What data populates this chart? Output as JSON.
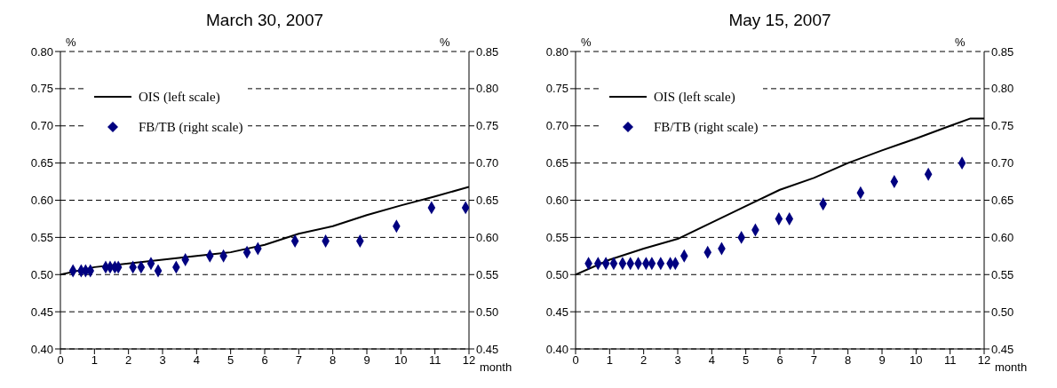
{
  "chart_data": [
    {
      "type": "line",
      "title": "March 30, 2007",
      "xlabel": "month",
      "ylabel": "%",
      "y2label": "%",
      "xlim": [
        0,
        12
      ],
      "xticks": [
        0,
        1,
        2,
        3,
        4,
        5,
        6,
        7,
        8,
        9,
        10,
        11,
        12
      ],
      "ylim": [
        0.4,
        0.8
      ],
      "yticks": [
        {
          "value": 0.4,
          "label": "0.40"
        },
        {
          "value": 0.45,
          "label": "0.45"
        },
        {
          "value": 0.5,
          "label": "0.50"
        },
        {
          "value": 0.55,
          "label": "0.55"
        },
        {
          "value": 0.6,
          "label": "0.60"
        },
        {
          "value": 0.65,
          "label": "0.65"
        },
        {
          "value": 0.7,
          "label": "0.70"
        },
        {
          "value": 0.75,
          "label": "0.75"
        },
        {
          "value": 0.8,
          "label": "0.80"
        }
      ],
      "y2lim": [
        0.45,
        0.85
      ],
      "y2ticks": [
        {
          "value": 0.45,
          "label": "0.45"
        },
        {
          "value": 0.5,
          "label": "0.50"
        },
        {
          "value": 0.55,
          "label": "0.55"
        },
        {
          "value": 0.6,
          "label": "0.60"
        },
        {
          "value": 0.65,
          "label": "0.65"
        },
        {
          "value": 0.7,
          "label": "0.70"
        },
        {
          "value": 0.75,
          "label": "0.75"
        },
        {
          "value": 0.8,
          "label": "0.80"
        },
        {
          "value": 0.85,
          "label": "0.85"
        }
      ],
      "grid": "y",
      "legend": "top left",
      "series": [
        {
          "name": "OIS (left scale)",
          "color": "#000000",
          "marker": "none",
          "line_style": "solid",
          "x": [
            0,
            1,
            2,
            3,
            4,
            5,
            6,
            7,
            8,
            9,
            10,
            11,
            12
          ],
          "values": [
            0.5,
            0.51,
            0.515,
            0.52,
            0.525,
            0.53,
            0.54,
            0.555,
            0.565,
            0.58,
            0.593,
            0.605,
            0.618
          ]
        },
        {
          "name": "FB/TB (right scale)",
          "type": "scatter",
          "axis": "y2",
          "color": "#000080",
          "marker": "diamond",
          "x": [
            0.37,
            0.61,
            0.74,
            0.88,
            1.33,
            1.46,
            1.6,
            1.7,
            2.13,
            2.37,
            2.66,
            2.87,
            3.4,
            3.67,
            4.39,
            4.79,
            5.48,
            5.8,
            6.89,
            7.79,
            8.8,
            9.87,
            10.9,
            11.9
          ],
          "values": [
            0.555,
            0.555,
            0.555,
            0.555,
            0.56,
            0.56,
            0.56,
            0.56,
            0.56,
            0.56,
            0.565,
            0.555,
            0.56,
            0.57,
            0.575,
            0.575,
            0.58,
            0.585,
            0.595,
            0.595,
            0.595,
            0.615,
            0.64,
            0.64
          ]
        }
      ]
    },
    {
      "type": "line",
      "title": "May 15, 2007",
      "xlabel": "month",
      "ylabel": "%",
      "y2label": "%",
      "xlim": [
        0,
        12
      ],
      "xticks": [
        0,
        1,
        2,
        3,
        4,
        5,
        6,
        7,
        8,
        9,
        10,
        11,
        12
      ],
      "ylim": [
        0.4,
        0.8
      ],
      "yticks": [
        {
          "value": 0.4,
          "label": "0.40"
        },
        {
          "value": 0.45,
          "label": "0.45"
        },
        {
          "value": 0.5,
          "label": "0.50"
        },
        {
          "value": 0.55,
          "label": "0.55"
        },
        {
          "value": 0.6,
          "label": "0.60"
        },
        {
          "value": 0.65,
          "label": "0.65"
        },
        {
          "value": 0.7,
          "label": "0.70"
        },
        {
          "value": 0.75,
          "label": "0.75"
        },
        {
          "value": 0.8,
          "label": "0.80"
        }
      ],
      "y2lim": [
        0.45,
        0.85
      ],
      "y2ticks": [
        {
          "value": 0.45,
          "label": "0.45"
        },
        {
          "value": 0.5,
          "label": "0.50"
        },
        {
          "value": 0.55,
          "label": "0.55"
        },
        {
          "value": 0.6,
          "label": "0.60"
        },
        {
          "value": 0.65,
          "label": "0.65"
        },
        {
          "value": 0.7,
          "label": "0.70"
        },
        {
          "value": 0.75,
          "label": "0.75"
        },
        {
          "value": 0.8,
          "label": "0.80"
        },
        {
          "value": 0.85,
          "label": "0.85"
        }
      ],
      "grid": "y",
      "legend": "top left",
      "series": [
        {
          "name": "OIS (left scale)",
          "color": "#000000",
          "marker": "none",
          "line_style": "solid",
          "x": [
            0,
            1,
            2,
            3,
            4,
            5,
            6,
            7,
            8,
            9,
            10,
            11,
            11.6,
            12
          ],
          "values": [
            0.5,
            0.52,
            0.535,
            0.548,
            0.57,
            0.592,
            0.614,
            0.63,
            0.65,
            0.667,
            0.683,
            0.7,
            0.71,
            0.71
          ]
        },
        {
          "name": "FB/TB (right scale)",
          "type": "scatter",
          "axis": "y2",
          "color": "#000080",
          "marker": "diamond",
          "x": [
            0.38,
            0.66,
            0.89,
            1.12,
            1.38,
            1.61,
            1.84,
            2.07,
            2.24,
            2.5,
            2.78,
            2.93,
            3.19,
            3.88,
            4.29,
            4.87,
            5.28,
            5.97,
            6.28,
            7.27,
            8.37,
            9.36,
            10.36,
            11.35
          ],
          "values": [
            0.565,
            0.565,
            0.565,
            0.565,
            0.565,
            0.565,
            0.565,
            0.565,
            0.565,
            0.565,
            0.565,
            0.565,
            0.575,
            0.58,
            0.585,
            0.6,
            0.61,
            0.625,
            0.625,
            0.645,
            0.66,
            0.675,
            0.685,
            0.7
          ]
        }
      ]
    }
  ]
}
